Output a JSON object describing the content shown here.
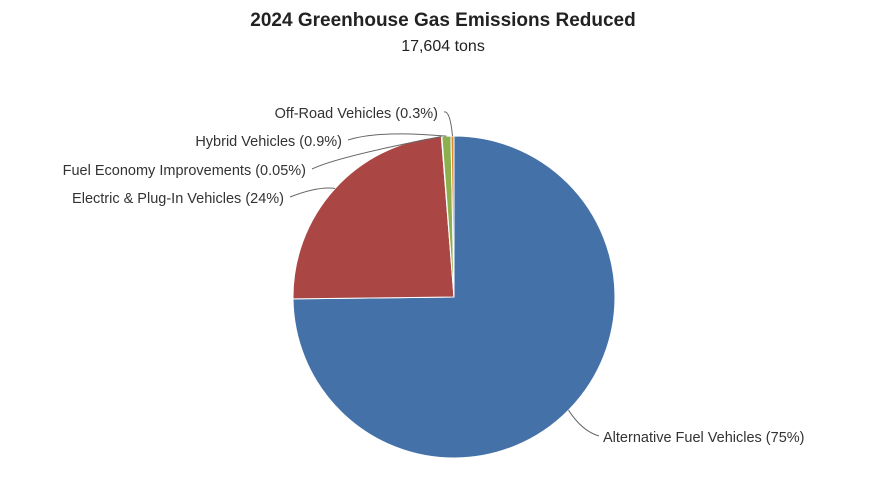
{
  "chart_data": {
    "type": "pie",
    "title": "2024 Greenhouse Gas Emissions Reduced",
    "subtitle": "17,604 tons",
    "slices": [
      {
        "label": "Alternative Fuel Vehicles (75%)",
        "name": "Alternative Fuel Vehicles",
        "percent": 75,
        "color": "#4472a8"
      },
      {
        "label": "Electric & Plug-In Vehicles (24%)",
        "name": "Electric & Plug-In Vehicles",
        "percent": 24,
        "color": "#aa4643"
      },
      {
        "label": "Fuel Economy Improvements (0.05%)",
        "name": "Fuel Economy Improvements",
        "percent": 0.05,
        "color": "#7a5ea8"
      },
      {
        "label": "Hybrid Vehicles (0.9%)",
        "name": "Hybrid Vehicles",
        "percent": 0.9,
        "color": "#8db04f"
      },
      {
        "label": "Off-Road Vehicles (0.3%)",
        "name": "Off-Road Vehicles",
        "percent": 0.3,
        "color": "#e08a2f"
      }
    ],
    "legend": "none",
    "label_position": "outside"
  }
}
